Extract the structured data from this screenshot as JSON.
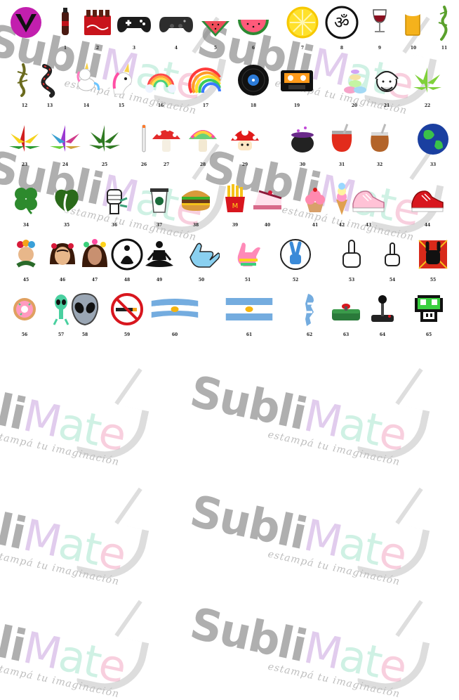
{
  "watermark": {
    "brand_part1": "Subli",
    "brand_part2": "M",
    "brand_part3": "at",
    "brand_part4": "e",
    "tagline": "estampá tu imaginación"
  },
  "catalog": {
    "items": [
      {
        "number": "",
        "icon": "v-logo-icon"
      },
      {
        "number": "1",
        "icon": "cola-bottle-icon"
      },
      {
        "number": "2",
        "icon": "cola-crate-icon"
      },
      {
        "number": "3",
        "icon": "gamepad-white-icon"
      },
      {
        "number": "4",
        "icon": "gamepad-black-icon"
      },
      {
        "number": "5",
        "icon": "watermelon-slice-icon"
      },
      {
        "number": "6",
        "icon": "watermelon-half-icon"
      },
      {
        "number": "7",
        "icon": "lemon-slice-icon"
      },
      {
        "number": "8",
        "icon": "om-symbol-icon"
      },
      {
        "number": "9",
        "icon": "wine-glass-icon"
      },
      {
        "number": "10",
        "icon": "beer-glass-icon"
      },
      {
        "number": "11",
        "icon": "lizard-icon"
      },
      {
        "number": "12",
        "icon": "gecko-icon"
      },
      {
        "number": "13",
        "icon": "snake-icon"
      },
      {
        "number": "14",
        "icon": "unicorn-icon"
      },
      {
        "number": "15",
        "icon": "unicorn-head-icon"
      },
      {
        "number": "16",
        "icon": "rainbow-cloud-icon"
      },
      {
        "number": "17",
        "icon": "rainbow-icon"
      },
      {
        "number": "18",
        "icon": "vinyl-record-icon"
      },
      {
        "number": "19",
        "icon": "cassette-tape-icon"
      },
      {
        "number": "20",
        "icon": "macarons-icon"
      },
      {
        "number": "21",
        "icon": "arab-face-icon"
      },
      {
        "number": "22",
        "icon": "green-leaf-icon"
      },
      {
        "number": "23",
        "icon": "rasta-leaf-icon"
      },
      {
        "number": "24",
        "icon": "color-leaf-icon"
      },
      {
        "number": "25",
        "icon": "cannabis-leaf-icon"
      },
      {
        "number": "26",
        "icon": "joint-icon"
      },
      {
        "number": "27",
        "icon": "red-mushroom-icon"
      },
      {
        "number": "28",
        "icon": "rainbow-mushroom-icon"
      },
      {
        "number": "29",
        "icon": "mario-mushroom-icon"
      },
      {
        "number": "30",
        "icon": "cauldron-icon"
      },
      {
        "number": "31",
        "icon": "red-mate-icon"
      },
      {
        "number": "32",
        "icon": "gourd-mate-icon"
      },
      {
        "number": "33",
        "icon": "earth-globe-icon"
      },
      {
        "number": "34",
        "icon": "clover-icon"
      },
      {
        "number": "35",
        "icon": "leaf-heart-icon"
      },
      {
        "number": "36",
        "icon": "fist-icon"
      },
      {
        "number": "37",
        "icon": "coffee-cup-icon"
      },
      {
        "number": "38",
        "icon": "hamburger-icon"
      },
      {
        "number": "39",
        "icon": "fries-icon"
      },
      {
        "number": "40",
        "icon": "cake-slice-icon"
      },
      {
        "number": "41",
        "icon": "cupcake-icon"
      },
      {
        "number": "42",
        "icon": "ice-cream-icon"
      },
      {
        "number": "43",
        "icon": "pink-sneaker-icon"
      },
      {
        "number": "44",
        "icon": "red-sneaker-icon"
      },
      {
        "number": "45",
        "icon": "frida-icon"
      },
      {
        "number": "46",
        "icon": "frida-face-icon"
      },
      {
        "number": "47",
        "icon": "frida-portrait-icon"
      },
      {
        "number": "48",
        "icon": "buddha-circle-icon"
      },
      {
        "number": "49",
        "icon": "meditation-icon"
      },
      {
        "number": "50",
        "icon": "shaka-hand-icon"
      },
      {
        "number": "51",
        "icon": "rainbow-hand-icon"
      },
      {
        "number": "52",
        "icon": "peace-hand-icon"
      },
      {
        "number": "53",
        "icon": "middle-finger-icon"
      },
      {
        "number": "54",
        "icon": "middle-finger-small-icon"
      },
      {
        "number": "55",
        "icon": "rock-hand-icon"
      },
      {
        "number": "56",
        "icon": "donut-icon"
      },
      {
        "number": "57",
        "icon": "alien-figure-icon"
      },
      {
        "number": "58",
        "icon": "alien-head-icon"
      },
      {
        "number": "59",
        "icon": "no-smoking-icon"
      },
      {
        "number": "60",
        "icon": "argentina-brush-flag-icon"
      },
      {
        "number": "61",
        "icon": "argentina-flag-icon"
      },
      {
        "number": "62",
        "icon": "argentina-map-icon"
      },
      {
        "number": "63",
        "icon": "arcade-button-icon"
      },
      {
        "number": "64",
        "icon": "joystick-icon"
      },
      {
        "number": "65",
        "icon": "pixel-mushroom-icon"
      }
    ]
  }
}
